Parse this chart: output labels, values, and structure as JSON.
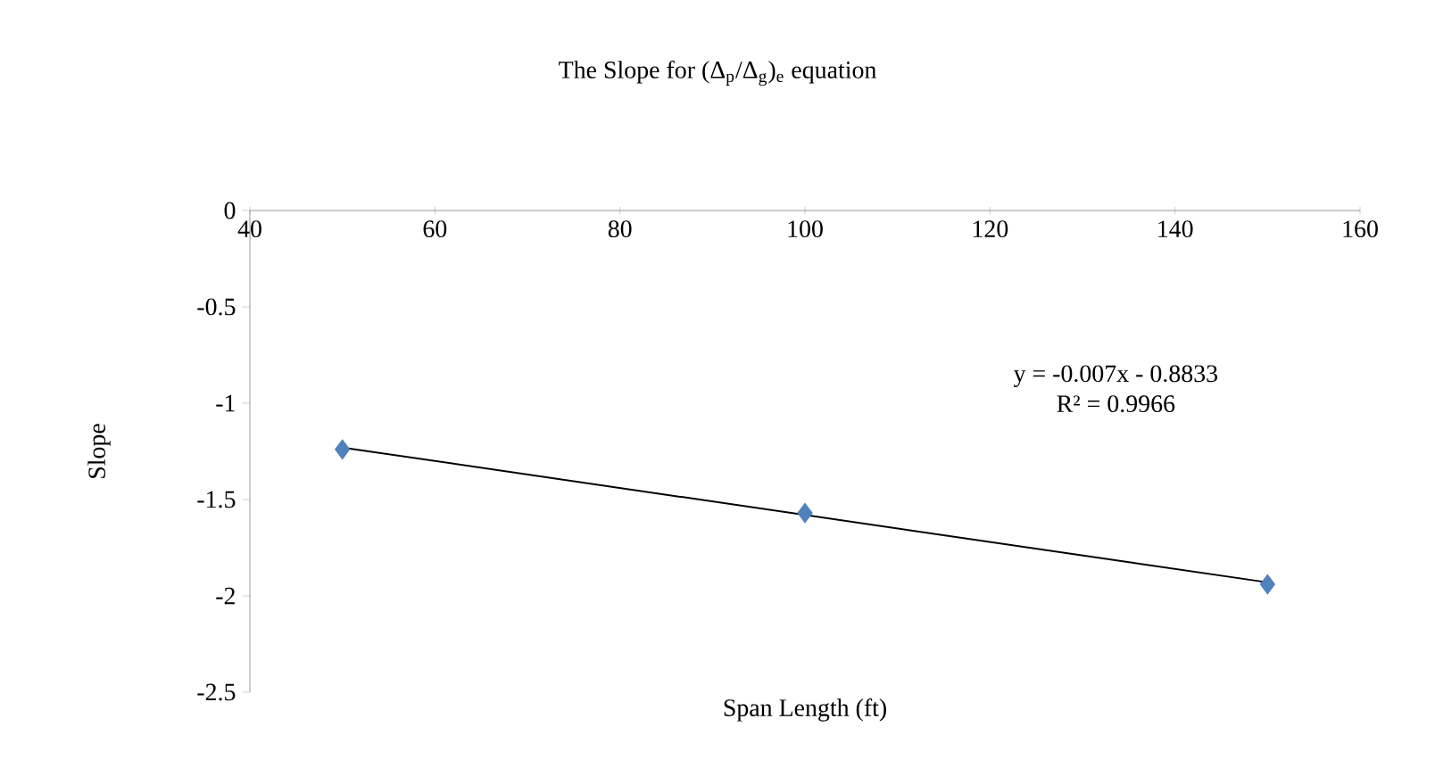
{
  "chart_data": {
    "type": "scatter",
    "title": "The Slope for (Δ$_{p}$/Δ$_{g}$)$_{e}$ equation",
    "xlabel": "Span Length (ft)",
    "ylabel": "Slope",
    "series": [
      {
        "color": "#4f81bd",
        "x": [
          50,
          100,
          150
        ],
        "values": [
          -1.24,
          -1.57,
          -1.94
        ],
        "marker": "diamond"
      },
      {
        "type": "line",
        "color": "#000000",
        "x": [
          50,
          150
        ],
        "values": [
          -1.23,
          -1.93
        ],
        "marker": "none",
        "line_style": "solid"
      }
    ],
    "annotations": [
      "y = -0.007x - 0.8833",
      "R² = 0.9966"
    ],
    "xlim": [
      40,
      160
    ],
    "ylim": [
      -2.5,
      0
    ],
    "xticks": [
      40,
      60,
      80,
      100,
      120,
      140,
      160
    ],
    "yticks": [
      0,
      -0.5,
      -1,
      -1.5,
      -2,
      -2.5
    ],
    "grid": false
  }
}
